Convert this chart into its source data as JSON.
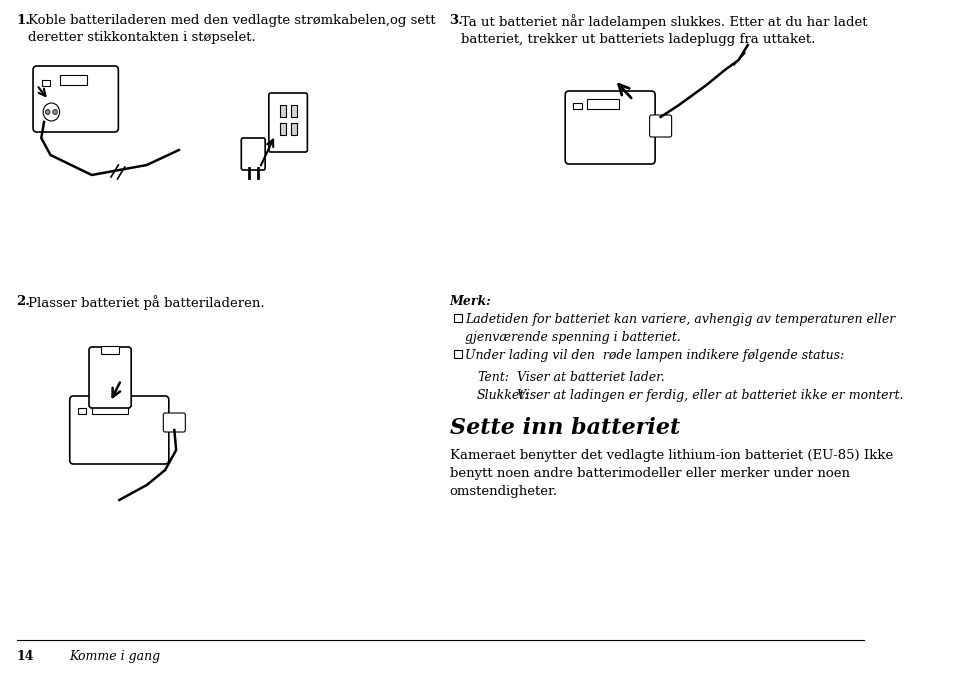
{
  "bg_color": "#ffffff",
  "text_color": "#000000",
  "page_number": "14",
  "page_footer_text": "Komme i gang",
  "step1_num": "1.",
  "step1_text": "Koble batteriladeren med den vedlagte strømkabelen,og sett\nderetter stikkontakten i støpselet.",
  "step3_num": "3.",
  "step3_text": "Ta ut batteriet når ladelampen slukkes. Etter at du har ladet\nbatteriet, trekker ut batteriets ladeplugg fra uttaket.",
  "step2_num": "2.",
  "step2_text": "Plasser batteriet på batteriladeren.",
  "note_title": "Merk:",
  "bullet1": "Ladetiden for batteriet kan variere, avhengig av temperaturen eller\ngjenværende spenning i batteriet.",
  "bullet2": "Under lading vil den  røde lampen indikere følgende status:",
  "sub1_label": "Tent:",
  "sub1_text": "Viser at batteriet lader.",
  "sub2_label": "Slukket:",
  "sub2_text": "Viser at ladingen er ferdig, eller at batteriet ikke er montert.",
  "section_title": "Sette inn batteriet",
  "section_body": "Kameraet benytter det vedlagte lithium-ion batteriet (EU-85) Ikke\nbenytt noen andre batterimodeller eller merker under noen\nomstendigheter.",
  "font_family": "serif",
  "step_fontsize": 9.5,
  "note_fontsize": 9,
  "section_title_fontsize": 16,
  "section_body_fontsize": 9.5,
  "footer_fontsize": 9
}
